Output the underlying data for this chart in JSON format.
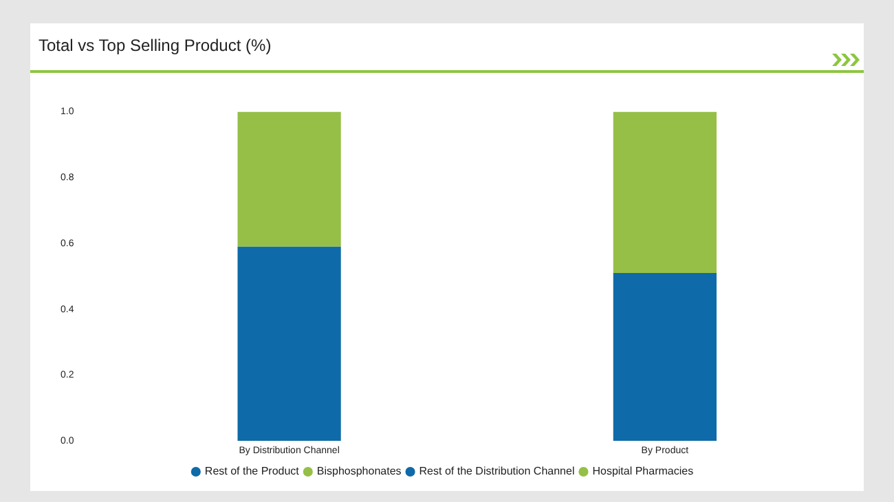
{
  "chart_data": {
    "type": "bar",
    "title": "Total vs Top Selling Product (%)",
    "categories": [
      "By Distribution Channel",
      "By Product"
    ],
    "stacked": true,
    "grid": false,
    "legend": "bottom",
    "ylim": [
      0,
      1
    ],
    "yticks": [
      {
        "value": 0,
        "label": "0.0"
      },
      {
        "value": 0.2,
        "label": "0.2"
      },
      {
        "value": 0.4,
        "label": "0.4"
      },
      {
        "value": 0.6,
        "label": "0.6"
      },
      {
        "value": 0.8,
        "label": "0.8"
      },
      {
        "value": 1,
        "label": "1.0"
      }
    ],
    "series": [
      {
        "name": "Rest of the Product",
        "color": "#0e6aa8",
        "values": [
          null,
          0.51
        ]
      },
      {
        "name": "Bisphosphonates",
        "color": "#95bf47",
        "values": [
          null,
          0.49
        ]
      },
      {
        "name": "Rest of the Distribution Channel",
        "color": "#0e6aa8",
        "values": [
          0.59,
          null
        ]
      },
      {
        "name": "Hospital Pharmacies",
        "color": "#95bf47",
        "values": [
          0.41,
          null
        ]
      }
    ]
  }
}
